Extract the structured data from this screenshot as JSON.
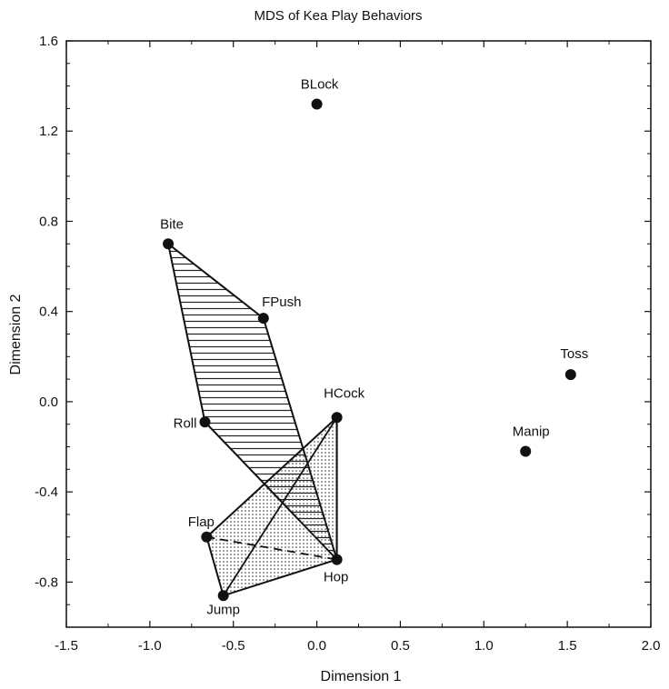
{
  "chart_data": {
    "type": "scatter",
    "title": "MDS of Kea Play Behaviors",
    "xlabel": "Dimension 1",
    "ylabel": "Dimension 2",
    "xlim": [
      -1.5,
      2.0
    ],
    "ylim": [
      -1.0,
      1.6
    ],
    "x_ticks": [
      "-1.5",
      "-1.0",
      "-0.5",
      "0.0",
      "0.5",
      "1.0",
      "1.5",
      "2.0"
    ],
    "y_ticks": [
      "-0.8",
      "-0.4",
      "0.0",
      "0.4",
      "0.8",
      "1.2",
      "1.6"
    ],
    "grid": false,
    "points": [
      {
        "label": "BLock",
        "x": 0.0,
        "y": 1.32
      },
      {
        "label": "Bite",
        "x": -0.89,
        "y": 0.7
      },
      {
        "label": "FPush",
        "x": -0.32,
        "y": 0.37
      },
      {
        "label": "Toss",
        "x": 1.52,
        "y": 0.12
      },
      {
        "label": "HCock",
        "x": 0.12,
        "y": -0.07
      },
      {
        "label": "Roll",
        "x": -0.67,
        "y": -0.09
      },
      {
        "label": "Manip",
        "x": 1.25,
        "y": -0.22
      },
      {
        "label": "Flap",
        "x": -0.66,
        "y": -0.6
      },
      {
        "label": "Hop",
        "x": 0.12,
        "y": -0.7
      },
      {
        "label": "Jump",
        "x": -0.56,
        "y": -0.86
      }
    ],
    "regions": [
      {
        "pattern": "horizontal-lines",
        "vertices": [
          "Bite",
          "FPush",
          "Hop",
          "Roll"
        ]
      },
      {
        "pattern": "dots",
        "vertices": [
          "HCock",
          "Hop",
          "Jump",
          "Flap"
        ]
      }
    ],
    "connectors": [
      {
        "from": "Flap",
        "to": "Hop",
        "style": "dashed"
      },
      {
        "from": "Jump",
        "to": "HCock",
        "style": "solid"
      },
      {
        "from": "Hop",
        "to": "HCock",
        "style": "solid"
      }
    ]
  }
}
